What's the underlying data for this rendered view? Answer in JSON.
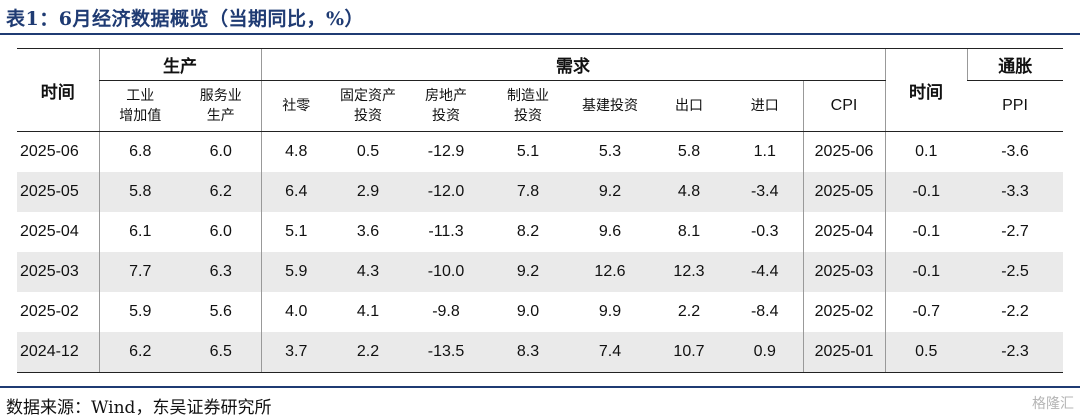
{
  "title": "表1：6月经济数据概览（当期同比，%）",
  "source": "数据来源：Wind，东吴证券研究所",
  "watermark": "格隆汇",
  "headers": {
    "time": "时间",
    "group_production": "生产",
    "group_demand": "需求",
    "group_inflation": "通胀",
    "industrial_l1": "工业",
    "industrial_l2": "增加值",
    "services_l1": "服务业",
    "services_l2": "生产",
    "retail": "社零",
    "fai_l1": "固定资产",
    "fai_l2": "投资",
    "realestate_l1": "房地产",
    "realestate_l2": "投资",
    "manufacturing_l1": "制造业",
    "manufacturing_l2": "投资",
    "infrastructure": "基建投资",
    "exports": "出口",
    "imports": "进口",
    "time2": "时间",
    "cpi": "CPI",
    "ppi": "PPI"
  },
  "rows": [
    {
      "date": "2025-06",
      "industrial": "6.8",
      "services": "6.0",
      "retail": "4.8",
      "fai": "0.5",
      "realestate": "-12.9",
      "manufacturing": "5.1",
      "infrastructure": "5.3",
      "exports": "5.8",
      "imports": "1.1",
      "date2": "2025-06",
      "cpi": "0.1",
      "ppi": "-3.6"
    },
    {
      "date": "2025-05",
      "industrial": "5.8",
      "services": "6.2",
      "retail": "6.4",
      "fai": "2.9",
      "realestate": "-12.0",
      "manufacturing": "7.8",
      "infrastructure": "9.2",
      "exports": "4.8",
      "imports": "-3.4",
      "date2": "2025-05",
      "cpi": "-0.1",
      "ppi": "-3.3"
    },
    {
      "date": "2025-04",
      "industrial": "6.1",
      "services": "6.0",
      "retail": "5.1",
      "fai": "3.6",
      "realestate": "-11.3",
      "manufacturing": "8.2",
      "infrastructure": "9.6",
      "exports": "8.1",
      "imports": "-0.3",
      "date2": "2025-04",
      "cpi": "-0.1",
      "ppi": "-2.7"
    },
    {
      "date": "2025-03",
      "industrial": "7.7",
      "services": "6.3",
      "retail": "5.9",
      "fai": "4.3",
      "realestate": "-10.0",
      "manufacturing": "9.2",
      "infrastructure": "12.6",
      "exports": "12.3",
      "imports": "-4.4",
      "date2": "2025-03",
      "cpi": "-0.1",
      "ppi": "-2.5"
    },
    {
      "date": "2025-02",
      "industrial": "5.9",
      "services": "5.6",
      "retail": "4.0",
      "fai": "4.1",
      "realestate": "-9.8",
      "manufacturing": "9.0",
      "infrastructure": "9.9",
      "exports": "2.2",
      "imports": "-8.4",
      "date2": "2025-02",
      "cpi": "-0.7",
      "ppi": "-2.2"
    },
    {
      "date": "2024-12",
      "industrial": "6.2",
      "services": "6.5",
      "retail": "3.7",
      "fai": "2.2",
      "realestate": "-13.5",
      "manufacturing": "8.3",
      "infrastructure": "7.4",
      "exports": "10.7",
      "imports": "0.9",
      "date2": "2025-01",
      "cpi": "0.5",
      "ppi": "-2.3"
    }
  ]
}
